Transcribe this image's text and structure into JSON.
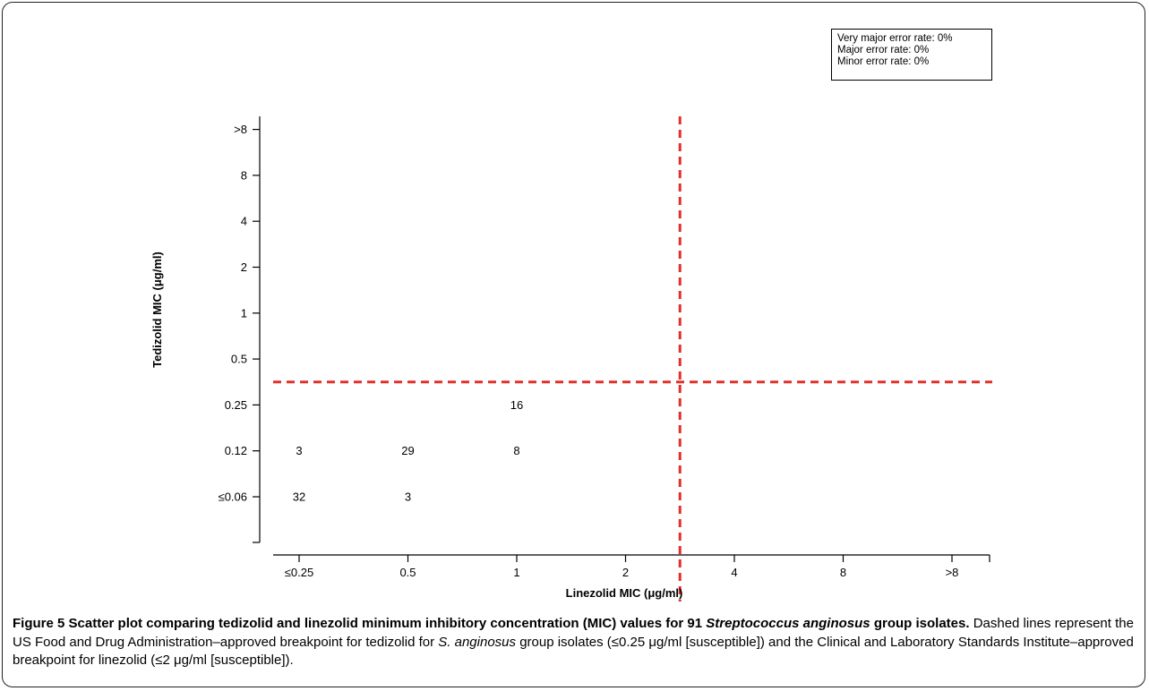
{
  "chart_data": {
    "type": "scatter",
    "title": "",
    "xlabel": "Linezolid MIC (μg/ml)",
    "ylabel": "Tedizolid MIC (μg/ml)",
    "x_categories": [
      "≤0.25",
      "0.5",
      "1",
      "2",
      "4",
      "8",
      ">8"
    ],
    "y_categories": [
      "≤0.06",
      "0.12",
      "0.25",
      "0.5",
      "1",
      "2",
      "4",
      "8",
      ">8"
    ],
    "points": [
      {
        "x": "≤0.25",
        "y": "0.12",
        "count": 3
      },
      {
        "x": "0.5",
        "y": "0.12",
        "count": 29
      },
      {
        "x": "1",
        "y": "0.12",
        "count": 8
      },
      {
        "x": "1",
        "y": "0.25",
        "count": 16
      },
      {
        "x": "≤0.25",
        "y": "≤0.06",
        "count": 32
      },
      {
        "x": "0.5",
        "y": "≤0.06",
        "count": 3
      }
    ],
    "breakpoints": {
      "color": "#e0302b",
      "x_between": [
        "2",
        "4"
      ],
      "y_between": [
        "0.25",
        "0.5"
      ]
    },
    "annotation": [
      "Very major error rate: 0%",
      "Major error rate: 0%",
      "Minor error rate: 0%"
    ]
  },
  "caption": {
    "figure_label": "Figure 5",
    "title_part1": "Scatter plot comparing tedizolid and linezolid minimum inhibitory concentration (MIC) values for 91",
    "title_organism": "Streptococcus anginosus",
    "title_part2": "group isolates.",
    "text_part1": "Dashed lines represent the US Food and Drug Administration–approved breakpoint for tedizolid for",
    "text_organism": "S. anginosus",
    "text_part2": "group isolates (≤0.25 μg/ml [susceptible]) and the Clinical and Laboratory Standards Institute–approved breakpoint for linezolid (≤2 μg/ml [susceptible])."
  }
}
